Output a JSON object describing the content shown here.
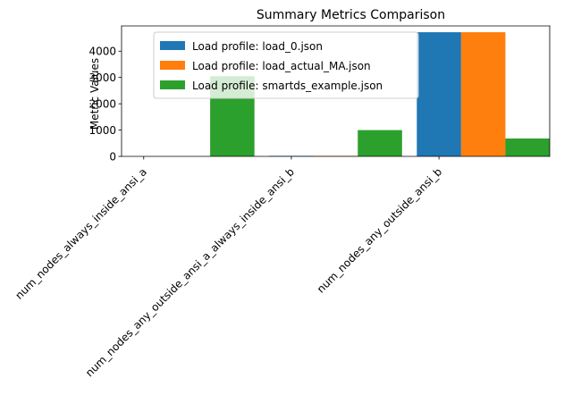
{
  "chart_data": {
    "type": "bar",
    "title": "Summary Metrics Comparison",
    "xlabel": "",
    "ylabel": "Metric Values",
    "categories": [
      "num_nodes_always_inside_ansi_a",
      "num_nodes_any_outside_ansi_a_always_inside_ansi_b",
      "num_nodes_any_outside_ansi_b"
    ],
    "series": [
      {
        "name": "Load profile: load_0.json",
        "color": "#1f77b4",
        "values": [
          0,
          20,
          4720
        ]
      },
      {
        "name": "Load profile: load_actual_MA.json",
        "color": "#ff7f0e",
        "values": [
          0,
          20,
          4720
        ]
      },
      {
        "name": "Load profile: smartds_example.json",
        "color": "#2ca02c",
        "values": [
          3050,
          1000,
          680
        ]
      }
    ],
    "ylim": [
      0,
      4960
    ],
    "yticks": [
      0,
      1000,
      2000,
      3000,
      4000
    ],
    "legend_position": "top-left",
    "grid": false
  }
}
